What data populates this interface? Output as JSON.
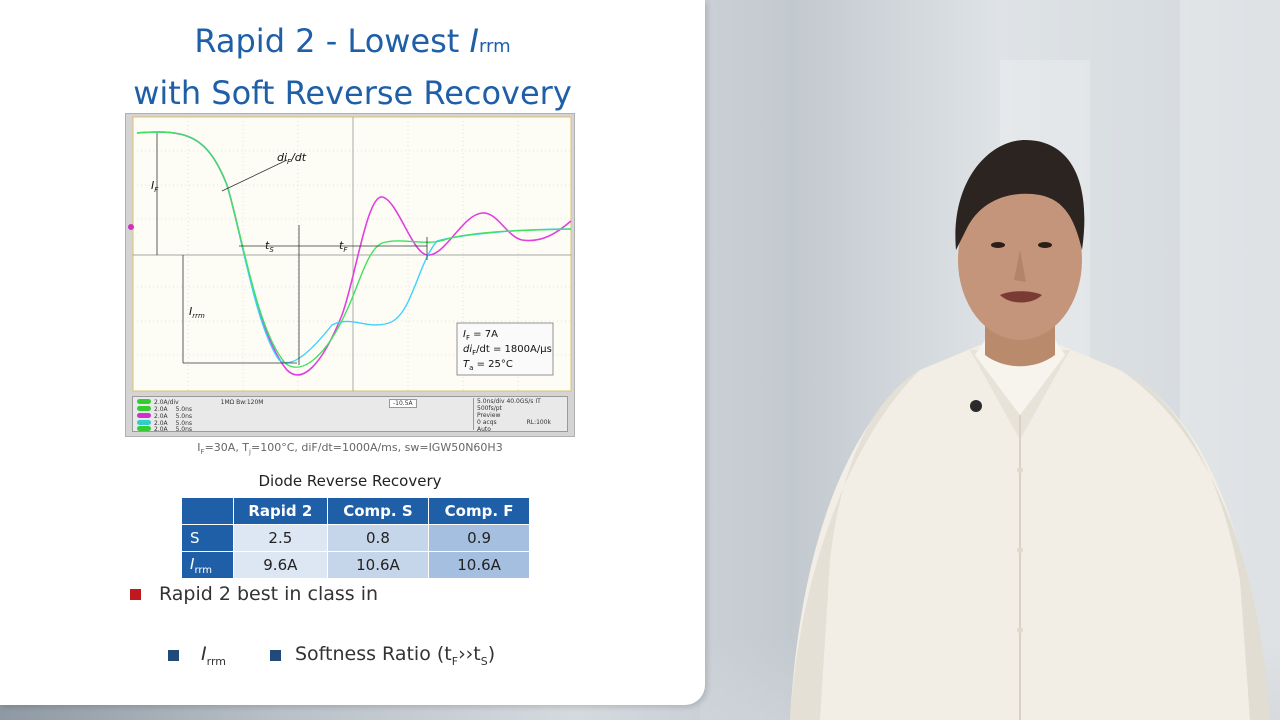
{
  "slide": {
    "title_line1_pre": "Rapid 2 - Lowest ",
    "title_symbol": "I",
    "title_subscript": "rrm",
    "title_line2": "with Soft Reverse Recovery"
  },
  "scope": {
    "labels": {
      "dif_pre": "di",
      "dif_sub": "F",
      "dif_post": "/dt",
      "if_main": "I",
      "if_sub": "F",
      "irrm_main": "I",
      "irrm_sub": "rrm",
      "ts_main": "t",
      "ts_sub": "S",
      "tf_main": "t",
      "tf_sub": "F"
    },
    "legend": {
      "line1_pre": "I",
      "line1_sub": "F",
      "line1_post": " = 7A",
      "line2_pre": "di",
      "line2_sub": "F",
      "line2_post": "/dt = 1800A/µs",
      "line3_pre": "T",
      "line3_sub": "a",
      "line3_post": " = 25°C"
    },
    "status": {
      "ch1": "2.0A/div",
      "ch1_detail": "1MΩ  Bw:120M",
      "ch2": "2.0A",
      "ch2_t": "5.0ns",
      "ch3": "2.0A",
      "ch3_t": "5.0ns",
      "ch4": "2.0A",
      "ch4_t": "5.0ns",
      "ch5": "2.0A",
      "ch5_t": "5.0ns",
      "trigger": "-10.5A",
      "timebase": "5.0ns/div",
      "sample": "40.0GS/s  IT  500fs/pt",
      "preview": "Preview",
      "acqs": "0 acqs",
      "rl": "RL:100k",
      "mode": "Auto"
    }
  },
  "caption": {
    "p1": "I",
    "p1_sub": "F",
    "p2": "=30A, T",
    "p2_sub": "j",
    "p3": "=100°C, diF/dt=1000A/ms, sw=IGW50N60H3"
  },
  "table": {
    "title": "Diode Reverse Recovery",
    "columns": [
      "Rapid 2",
      "Comp. S",
      "Comp. F"
    ],
    "rows": [
      {
        "label": "S",
        "values": [
          "2.5",
          "0.8",
          "0.9"
        ]
      },
      {
        "label_main": "I",
        "label_sub": "rrm",
        "values": [
          "9.6A",
          "10.6A",
          "10.6A"
        ]
      }
    ]
  },
  "bullets": {
    "main": "Rapid 2 best in class in",
    "sub1_main": "I",
    "sub1_sub": "rrm",
    "sub2_pre": "Softness Ratio (t",
    "sub2_sub1": "F",
    "sub2_mid": "››t",
    "sub2_sub2": "S",
    "sub2_post": ")"
  },
  "colors": {
    "title_blue": "#1f5fa8",
    "table_header": "#1f5fa8",
    "bullet_red": "#c0181f",
    "bullet_blue": "#1f4a7a",
    "trace_rapid2": "#e040e0",
    "trace_comp_s": "#40d0ff",
    "trace_comp_f": "#40e060"
  }
}
